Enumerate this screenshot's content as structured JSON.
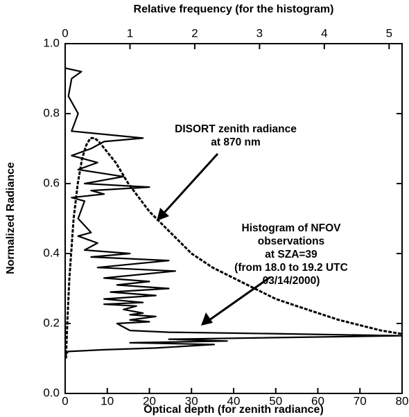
{
  "chart_data": {
    "type": "line",
    "xlabel": "Optical depth (for zenith radiance)",
    "x2label": "Relative frequency (for the histogram)",
    "ylabel": "Normalized Radiance",
    "xlim": [
      0,
      80
    ],
    "xticks": [
      0,
      10,
      20,
      30,
      40,
      50,
      60,
      70,
      80
    ],
    "x2lim": [
      0,
      5.2
    ],
    "x2ticks": [
      0,
      1,
      2,
      3,
      4,
      5
    ],
    "ylim": [
      0,
      1
    ],
    "yticks": [
      {
        "value": 0,
        "label": "0.0"
      },
      0.2,
      0.4,
      0.6,
      0.8,
      {
        "value": 1,
        "label": "1.0"
      }
    ],
    "series": [
      {
        "name": "DISORT zenith radiance",
        "color": "#000",
        "dash": true,
        "x": [
          0.2,
          0.5,
          1,
          2,
          3,
          4,
          5,
          6,
          7,
          8,
          10,
          12,
          15,
          20,
          25,
          30,
          35,
          40,
          45,
          50,
          55,
          60,
          65,
          70,
          75,
          80
        ],
        "values": [
          0.1,
          0.2,
          0.33,
          0.5,
          0.6,
          0.67,
          0.71,
          0.73,
          0.73,
          0.72,
          0.69,
          0.66,
          0.6,
          0.52,
          0.46,
          0.4,
          0.36,
          0.33,
          0.3,
          0.27,
          0.25,
          0.23,
          0.21,
          0.195,
          0.18,
          0.17
        ]
      },
      {
        "name": "Histogram of NFOV observations",
        "color": "#000",
        "axis": "x2",
        "x": [
          0,
          0.05,
          0.6,
          1.4,
          2.3,
          1.0,
          2.5,
          1.6,
          5.2,
          3.5,
          1.6,
          1.0,
          0.9,
          0.8,
          1.3,
          1.0,
          1.4,
          1.0,
          1.2,
          0.9,
          1.1,
          0.6,
          1.2,
          0.6,
          1.4,
          0.7,
          1.6,
          0.8,
          1.3,
          0.6,
          1.7,
          0.5,
          1.6,
          0.4,
          1.0,
          0.3,
          0.5,
          0.2,
          0.4,
          0.2,
          0.3,
          0.1,
          0.6,
          0.4,
          1.3,
          0.3,
          0.9,
          0.2,
          0.5,
          0.1,
          0.4,
          0.6,
          1.2,
          0.1,
          0.2,
          0.05,
          0.1,
          0.25,
          0
        ],
        "values": [
          0.11,
          0.12,
          0.125,
          0.13,
          0.14,
          0.145,
          0.15,
          0.155,
          0.165,
          0.17,
          0.175,
          0.18,
          0.19,
          0.2,
          0.205,
          0.21,
          0.22,
          0.225,
          0.23,
          0.24,
          0.25,
          0.255,
          0.26,
          0.27,
          0.28,
          0.29,
          0.3,
          0.31,
          0.32,
          0.33,
          0.35,
          0.36,
          0.38,
          0.39,
          0.4,
          0.41,
          0.43,
          0.45,
          0.46,
          0.5,
          0.55,
          0.56,
          0.57,
          0.58,
          0.59,
          0.6,
          0.62,
          0.64,
          0.66,
          0.68,
          0.7,
          0.72,
          0.73,
          0.75,
          0.8,
          0.85,
          0.9,
          0.92,
          0.93
        ]
      }
    ],
    "annotations": [
      [
        "DISORT zenith radiance",
        "at 870 nm"
      ],
      [
        "Histogram of NFOV",
        "observations",
        "at SZA=39",
        "(from 18.0 to 19.2 UTC",
        "03/14/2000)"
      ]
    ]
  }
}
